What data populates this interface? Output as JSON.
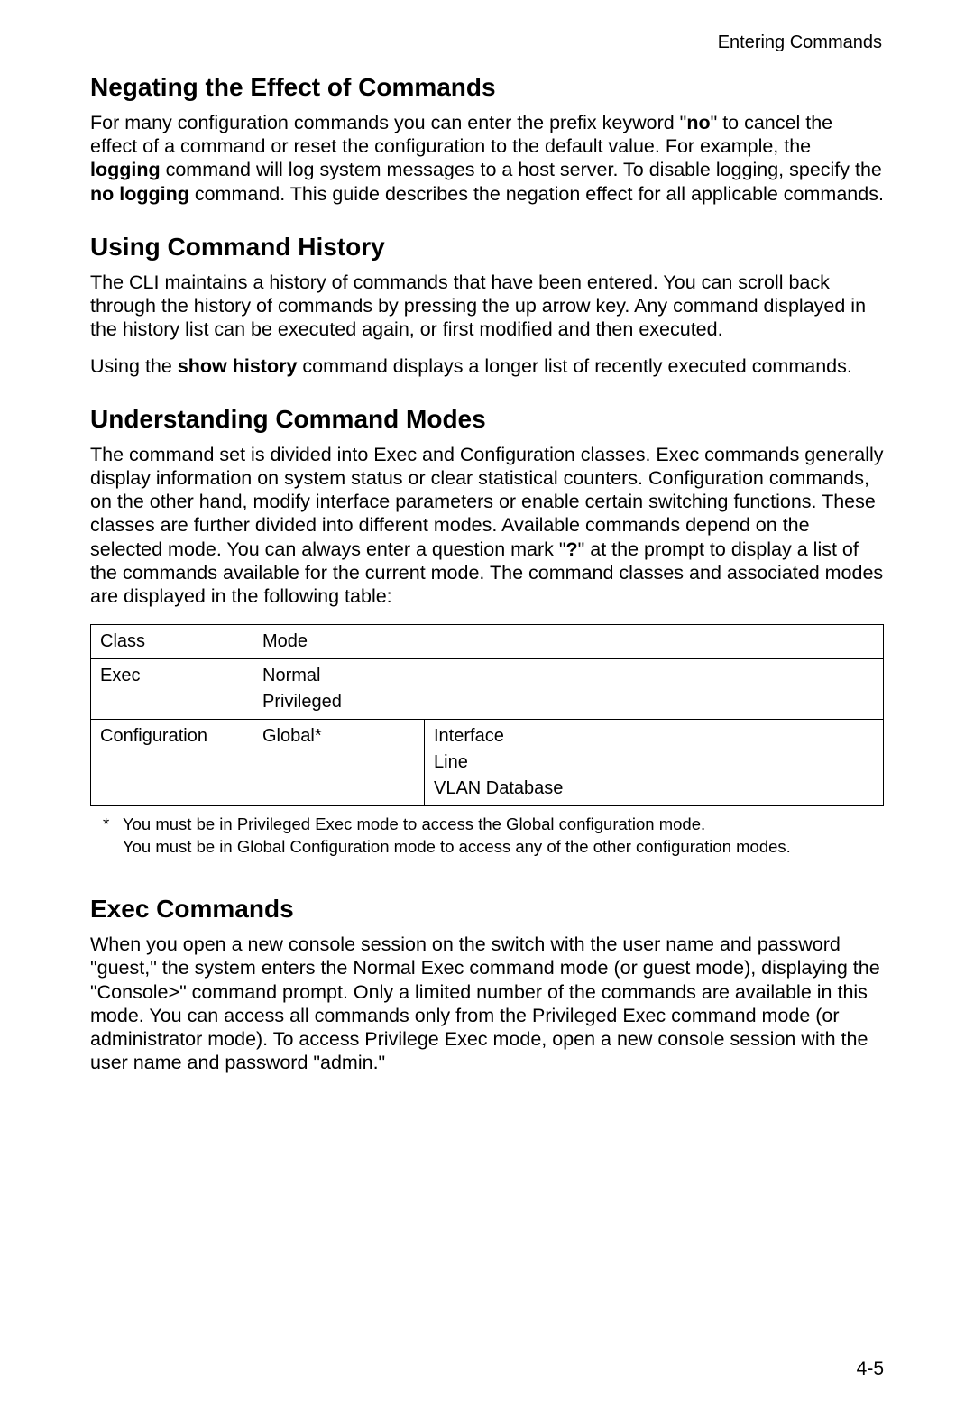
{
  "header": {
    "page_section": "Entering Commands"
  },
  "sections": {
    "negating": {
      "title": "Negating the Effect of Commands",
      "p1_a": "For many configuration commands you can enter the prefix keyword \"",
      "p1_b": "no",
      "p1_c": "\" to cancel the effect of a command or reset the configuration to the default value. For example, the ",
      "p1_d": "logging",
      "p1_e": " command will log system messages to a host server. To disable logging, specify the ",
      "p1_f": "no logging",
      "p1_g": " command. This guide describes the negation effect for all applicable commands."
    },
    "history": {
      "title": "Using Command History",
      "p1": "The CLI maintains a history of commands that have been entered. You can scroll back through the history of commands by pressing the up arrow key. Any command displayed in the history list can be executed again, or first modified and then executed.",
      "p2_a": "Using the ",
      "p2_b": "show history",
      "p2_c": " command displays a longer list of recently executed commands."
    },
    "modes": {
      "title": "Understanding Command Modes",
      "p1_a": "The command set is divided into Exec and Configuration classes. Exec commands generally display information on system status or clear statistical counters. Configuration commands, on the other hand, modify interface parameters or enable certain switching functions. These classes are further divided into different modes. Available commands depend on the selected mode. You can always enter a question mark \"",
      "p1_b": "?",
      "p1_c": "\" at the prompt to display a list of the commands available for the current mode. The command classes and associated modes are displayed in the following table:"
    },
    "exec": {
      "title": "Exec Commands",
      "p1": "When you open a new console session on the switch with the user name and password \"guest,\" the system enters the Normal Exec command mode (or guest mode), displaying the \"Console>\" command prompt. Only a limited number of the commands are available in this mode. You can access all commands only from the Privileged Exec command mode (or administrator mode). To access Privilege Exec mode, open a new console session with the user name and password \"admin.\""
    }
  },
  "table": {
    "header": {
      "c1": "Class",
      "c2": "Mode"
    },
    "row1": {
      "c1": "Exec",
      "c2_l1": "Normal",
      "c2_l2": "Privileged"
    },
    "row2": {
      "c1": "Configuration",
      "c2": "Global*",
      "c3_l1": "Interface",
      "c3_l2": "Line",
      "c3_l3": "VLAN Database"
    }
  },
  "footnote": {
    "star": "*",
    "line1": "You must be in Privileged Exec mode to access the Global configuration mode.",
    "line2": "You must be in Global Configuration mode to access any of the other configuration modes."
  },
  "page_number": "4-5"
}
